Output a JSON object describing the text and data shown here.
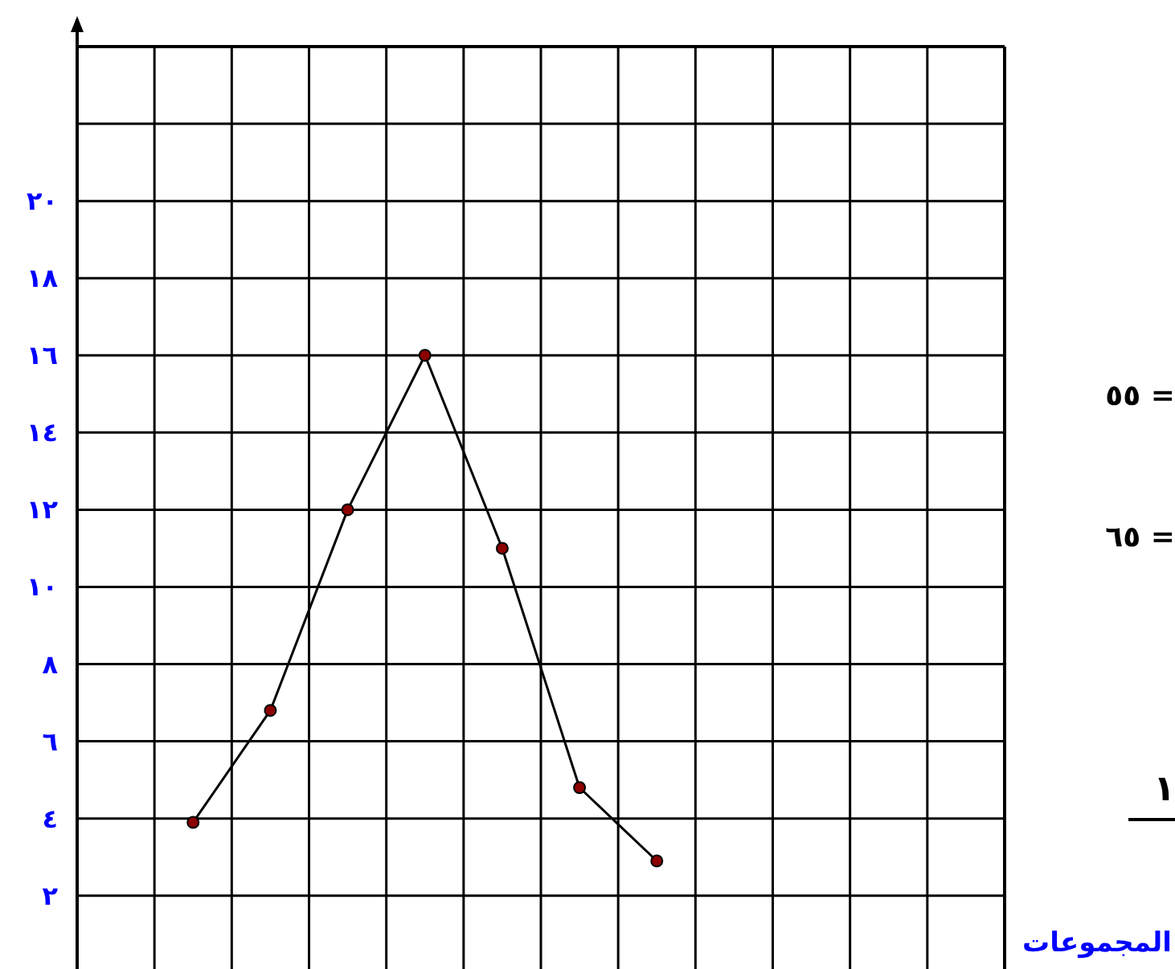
{
  "chart_data": {
    "type": "line",
    "xlabel": "المجموعات",
    "categories": [
      null,
      null,
      null,
      null,
      null,
      null,
      null,
      null,
      null,
      null,
      null,
      null
    ],
    "series": [
      {
        "color": "#000000",
        "values": [
          null,
          3.9,
          6.8,
          12,
          16,
          11,
          4.8,
          2.9,
          null,
          null,
          null,
          null
        ]
      }
    ],
    "ylim": [
      0.1,
      24
    ],
    "yticks": [
      {
        "value": 2,
        "label": "٢"
      },
      {
        "value": 4,
        "label": "٤"
      },
      {
        "value": 6,
        "label": "٦"
      },
      {
        "value": 8,
        "label": "٨"
      },
      {
        "value": 10,
        "label": "١٠"
      },
      {
        "value": 12,
        "label": "١٢"
      },
      {
        "value": 14,
        "label": "١٤"
      },
      {
        "value": 16,
        "label": "١٦"
      },
      {
        "value": 18,
        "label": "١٨"
      },
      {
        "value": 20,
        "label": "٢٠"
      },
      {
        "value": 22,
        "label": null
      }
    ],
    "grid": true,
    "marker": "circle",
    "line_style": "solid",
    "annotations": [
      "٥٥ =",
      "٦٥ =",
      "١"
    ]
  }
}
